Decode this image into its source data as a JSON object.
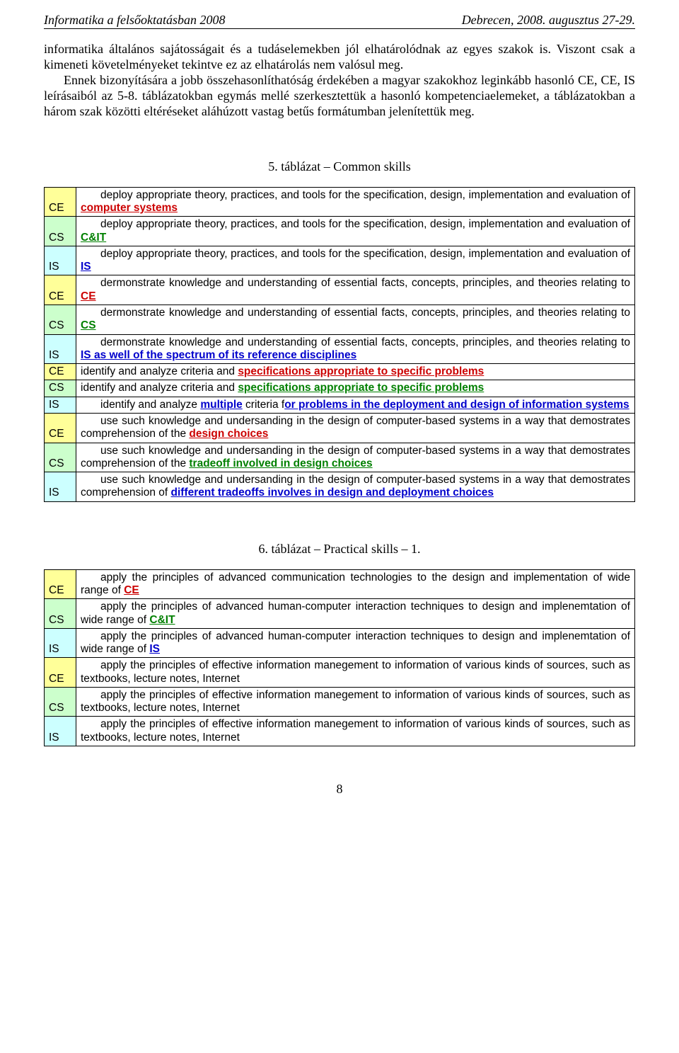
{
  "header": {
    "left": "Informatika a felsőoktatásban 2008",
    "right": "Debrecen, 2008. augusztus 27-29."
  },
  "paragraphs": {
    "p1": "informatika általános sajátosságait és a tudáselemekben jól elhatárolódnak az egyes szakok is. Viszont csak a kimeneti követelményeket tekintve ez az elhatárolás nem valósul meg.",
    "p2": "Ennek bizonyítására a jobb összehasonlíthatóság érdekében a magyar szakokhoz leginkább hasonló CE, CE, IS leírásaiból az 5-8. táblázatokban egymás mellé szerkesztettük a hasonló kompetenciaelemeket, a táblázatokban a három szak közötti eltéréseket aláhúzott vastag betűs formátumban jelenítettük meg."
  },
  "colors": {
    "ce_bg": "#ffff99",
    "cs_bg": "#ccffcc",
    "is_bg": "#ccffff",
    "red": "#cc0000",
    "green": "#008000",
    "blue": "#0000cc"
  },
  "table5": {
    "title": "5. táblázat – Common skills",
    "rows": [
      {
        "label": "CE",
        "bg": "ce",
        "pre": "deploy appropriate theory, practices, and tools for the specification, design, implementation and evaluation of ",
        "hi": "computer systems",
        "col": "red",
        "post": ""
      },
      {
        "label": "CS",
        "bg": "cs",
        "pre": "deploy appropriate theory, practices, and tools for the specification, design, implementation and evaluation of ",
        "hi": "C&IT",
        "col": "green",
        "post": ""
      },
      {
        "label": "IS",
        "bg": "is",
        "pre": "deploy appropriate theory, practices, and tools for the specification, design, implementation and evaluation of ",
        "hi": "IS",
        "col": "blue",
        "post": ""
      },
      {
        "label": "CE",
        "bg": "ce",
        "pre": "dermonstrate knowledge and understanding of essential facts, concepts, principles, and theories relating to ",
        "hi": "CE",
        "col": "red",
        "post": ""
      },
      {
        "label": "CS",
        "bg": "cs",
        "pre": "dermonstrate knowledge and understanding of essential facts, concepts, principles, and theories relating to ",
        "hi": "CS",
        "col": "green",
        "post": ""
      },
      {
        "label": "IS",
        "bg": "is",
        "pre": "dermonstrate knowledge and understanding of essential facts, concepts, principles, and theories relating to ",
        "hi": "IS as well of the spectrum of its reference disciplines",
        "col": "blue",
        "post": ""
      },
      {
        "label": "CE",
        "bg": "ce",
        "pre": "identify and analyze criteria and ",
        "hi": "specifications appropriate to specific problems",
        "col": "red",
        "post": "",
        "noindent": true
      },
      {
        "label": "CS",
        "bg": "cs",
        "pre": "identify and analyze criteria and ",
        "hi": "specifications appropriate to specific problems",
        "col": "green",
        "post": "",
        "noindent": true
      },
      {
        "label": "IS",
        "bg": "is",
        "pre": "identify and analyze ",
        "hi": "multiple",
        "col": "blue",
        "mid": " criteria f",
        "hi2": "or problems in the deployment and design of information systems",
        "col2": "blue",
        "post": ""
      },
      {
        "label": "CE",
        "bg": "ce",
        "pre": "use such knowledge and undersanding in the design of computer-based systems in a way that demostrates comprehension of the ",
        "hi": "design choices",
        "col": "red",
        "post": ""
      },
      {
        "label": "CS",
        "bg": "cs",
        "pre": "use such knowledge and undersanding in the design of computer-based systems in a way that demostrates comprehension of the ",
        "hi": "tradeoff involved in design choices",
        "col": "green",
        "post": ""
      },
      {
        "label": "IS",
        "bg": "is",
        "pre": "use such knowledge and undersanding in the design of computer-based systems in a way that demostrates comprehension of ",
        "hi": "different tradeoffs involves in design and deployment choices",
        "col": "blue",
        "post": ""
      }
    ]
  },
  "table6": {
    "title": "6. táblázat – Practical skills – 1.",
    "rows": [
      {
        "label": "CE",
        "bg": "ce",
        "pre": "apply the principles of advanced communication technologies to the design and implementation of wide range of ",
        "hi": "CE",
        "col": "red",
        "post": ""
      },
      {
        "label": "CS",
        "bg": "cs",
        "pre": "apply the principles of advanced human-computer interaction techniques to design and implenemtation of wide range of ",
        "hi": "C&IT",
        "col": "green",
        "post": ""
      },
      {
        "label": "IS",
        "bg": "is",
        "pre": "apply the principles of advanced human-computer interaction techniques to design and implenemtation of wide range of ",
        "hi": "IS",
        "col": "blue",
        "post": ""
      },
      {
        "label": "CE",
        "bg": "ce",
        "pre": "apply the principles of effective information manegement to information of various kinds of sources, such as textbooks, lecture notes, Internet",
        "hi": "",
        "col": "red",
        "post": ""
      },
      {
        "label": "CS",
        "bg": "cs",
        "pre": "apply the principles of effective information manegement to information of various kinds of sources, such as textbooks, lecture notes, Internet",
        "hi": "",
        "col": "green",
        "post": ""
      },
      {
        "label": "IS",
        "bg": "is",
        "pre": "apply the principles of effective information manegement to information of various kinds of sources, such as textbooks, lecture notes, Internet",
        "hi": "",
        "col": "blue",
        "post": ""
      }
    ]
  },
  "pagenum": "8"
}
